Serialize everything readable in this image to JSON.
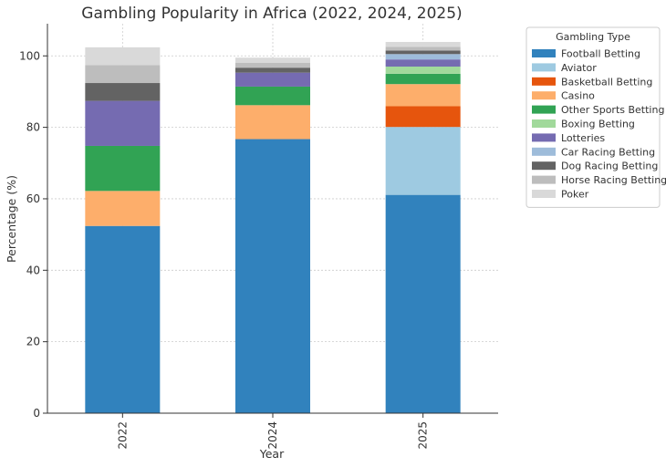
{
  "chart_data": {
    "type": "bar",
    "stacked": true,
    "title": "Gambling Popularity in Africa (2022, 2024, 2025)",
    "xlabel": "Year",
    "ylabel": "Percentage (%)",
    "ylim": [
      0,
      109
    ],
    "yticks": [
      0,
      20,
      40,
      60,
      80,
      100
    ],
    "grid": true,
    "categories": [
      "2022",
      "2024",
      "2025"
    ],
    "legend": {
      "title": "Gambling Type",
      "placement": "outside-right"
    },
    "series": [
      {
        "name": "Football Betting",
        "color": "#3182bd",
        "values": [
          52.4,
          76.7,
          61.1
        ]
      },
      {
        "name": "Aviator",
        "color": "#9ecae1",
        "values": [
          0,
          0,
          19.0
        ]
      },
      {
        "name": "Basketball Betting",
        "color": "#e6550d",
        "values": [
          0,
          0,
          5.8
        ]
      },
      {
        "name": "Casino",
        "color": "#fdae6b",
        "values": [
          9.8,
          9.5,
          6.2
        ]
      },
      {
        "name": "Other Sports Betting",
        "color": "#31a354",
        "values": [
          12.6,
          5.2,
          2.9
        ]
      },
      {
        "name": "Boxing Betting",
        "color": "#a1d99b",
        "values": [
          0,
          0,
          2.0
        ]
      },
      {
        "name": "Lotteries",
        "color": "#756bb1",
        "values": [
          12.6,
          3.9,
          2.0
        ]
      },
      {
        "name": "Car Racing Betting",
        "color": "#9ebcda",
        "values": [
          0,
          0,
          1.5
        ]
      },
      {
        "name": "Dog Racing Betting",
        "color": "#636363",
        "values": [
          5.0,
          1.4,
          1.0
        ]
      },
      {
        "name": "Horse Racing Betting",
        "color": "#bdbdbd",
        "values": [
          5.0,
          1.4,
          1.0
        ]
      },
      {
        "name": "Poker",
        "color": "#d9d9d9",
        "values": [
          5.0,
          1.4,
          1.4
        ]
      }
    ]
  }
}
